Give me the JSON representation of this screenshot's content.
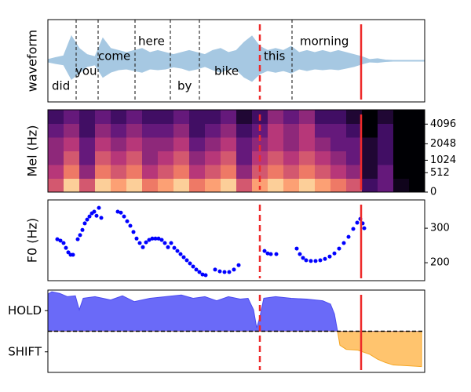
{
  "chart_data": [
    {
      "type": "waveform",
      "ylabel": "waveform",
      "color": "#a6c8e2",
      "xlim": [
        0,
        480
      ],
      "ylim": [
        -1,
        1
      ],
      "x": [
        0,
        10,
        20,
        30,
        40,
        50,
        60,
        70,
        80,
        90,
        100,
        110,
        120,
        130,
        140,
        150,
        160,
        170,
        180,
        190,
        200,
        210,
        220,
        230,
        240,
        250,
        260,
        270,
        280,
        290,
        300,
        310,
        320,
        330,
        340,
        350,
        360,
        370,
        380,
        390,
        400,
        410,
        420,
        430,
        440,
        450,
        460,
        470,
        480
      ],
      "series": [
        {
          "values": [
            0.03,
            0.08,
            0.12,
            0.6,
            0.3,
            0.15,
            0.1,
            0.55,
            0.3,
            0.25,
            0.2,
            0.25,
            0.3,
            0.2,
            0.25,
            0.2,
            0.15,
            0.2,
            0.25,
            0.2,
            0.15,
            0.25,
            0.3,
            0.2,
            0.25,
            0.45,
            0.6,
            0.35,
            0.25,
            0.3,
            0.25,
            0.35,
            0.2,
            0.25,
            0.2,
            0.25,
            0.2,
            0.25,
            0.2,
            0.15,
            0.1,
            0.03,
            0.05,
            0.02,
            0.01,
            0.01,
            0.01,
            0.01,
            0.01
          ]
        },
        {
          "values": [
            -0.03,
            -0.07,
            -0.1,
            -0.45,
            -0.3,
            -0.14,
            -0.1,
            -0.4,
            -0.28,
            -0.22,
            -0.2,
            -0.24,
            -0.28,
            -0.2,
            -0.22,
            -0.2,
            -0.15,
            -0.18,
            -0.24,
            -0.2,
            -0.14,
            -0.22,
            -0.28,
            -0.2,
            -0.22,
            -0.4,
            -0.5,
            -0.32,
            -0.24,
            -0.28,
            -0.24,
            -0.3,
            -0.2,
            -0.24,
            -0.2,
            -0.22,
            -0.2,
            -0.22,
            -0.18,
            -0.14,
            -0.08,
            -0.03,
            -0.04,
            -0.02,
            -0.01,
            -0.01,
            -0.01,
            -0.01,
            -0.01
          ]
        }
      ],
      "words": [
        {
          "text": "did",
          "x": 5
        },
        {
          "text": "you",
          "x": 35
        },
        {
          "text": "come",
          "x": 64
        },
        {
          "text": "here",
          "x": 115
        },
        {
          "text": "by",
          "x": 165
        },
        {
          "text": "bike",
          "x": 212
        },
        {
          "text": "this",
          "x": 275
        },
        {
          "text": "morning",
          "x": 321
        }
      ],
      "word_boundaries": [
        36,
        64,
        111,
        156,
        193,
        311
      ],
      "vlines": [
        {
          "x": 270,
          "color": "#ee2a2a",
          "style": "dashed"
        },
        {
          "x": 399,
          "color": "#ee2a2a",
          "style": "solid"
        }
      ]
    },
    {
      "type": "heatmap",
      "ylabel": "Mel (Hz)",
      "yscale": "mel",
      "yaxis": "right",
      "xlim": [
        0,
        480
      ],
      "ylim": [
        0,
        6500
      ],
      "yticks": [
        0,
        512,
        1024,
        2048,
        4096
      ],
      "colormap": [
        "#000004",
        "#51127c",
        "#b73779",
        "#fc8961",
        "#fcfdbf"
      ],
      "zlim": [
        0,
        1
      ],
      "z": [
        [
          0.6,
          0.9,
          0.6,
          0.9,
          0.8,
          0.9,
          0.7,
          0.8,
          0.9,
          0.7,
          0.8,
          0.9,
          0.6,
          0.8,
          0.9,
          0.8,
          0.9,
          0.8,
          0.7,
          0.6,
          0.2,
          0.3,
          0.05,
          0
        ],
        [
          0.5,
          0.7,
          0.4,
          0.7,
          0.6,
          0.7,
          0.5,
          0.6,
          0.7,
          0.5,
          0.6,
          0.7,
          0.4,
          0.6,
          0.7,
          0.6,
          0.7,
          0.6,
          0.5,
          0.4,
          0.1,
          0.3,
          0,
          0
        ],
        [
          0.4,
          0.6,
          0.3,
          0.6,
          0.5,
          0.6,
          0.4,
          0.5,
          0.6,
          0.4,
          0.5,
          0.6,
          0.3,
          0.5,
          0.6,
          0.5,
          0.6,
          0.5,
          0.4,
          0.3,
          0.1,
          0.2,
          0,
          0
        ],
        [
          0.4,
          0.5,
          0.3,
          0.5,
          0.4,
          0.5,
          0.4,
          0.4,
          0.5,
          0.3,
          0.4,
          0.5,
          0.3,
          0.4,
          0.5,
          0.4,
          0.5,
          0.4,
          0.3,
          0.3,
          0.1,
          0.2,
          0,
          0
        ],
        [
          0.3,
          0.4,
          0.2,
          0.4,
          0.3,
          0.4,
          0.3,
          0.3,
          0.4,
          0.2,
          0.3,
          0.4,
          0.2,
          0.3,
          0.5,
          0.4,
          0.5,
          0.3,
          0.3,
          0.2,
          0,
          0.2,
          0,
          0
        ],
        [
          0.2,
          0.3,
          0.2,
          0.3,
          0.2,
          0.3,
          0.2,
          0.2,
          0.3,
          0.2,
          0.2,
          0.3,
          0.1,
          0.2,
          0.4,
          0.3,
          0.4,
          0.2,
          0.2,
          0.1,
          0,
          0.1,
          0,
          0
        ]
      ],
      "vlines": [
        {
          "x": 270,
          "color": "#ee2a2a",
          "style": "dashed"
        },
        {
          "x": 399,
          "color": "#ee2a2a",
          "style": "solid"
        }
      ]
    },
    {
      "type": "scatter",
      "ylabel": "F0 (Hz)",
      "yaxis": "right",
      "color": "#0000ff",
      "xlim": [
        0,
        480
      ],
      "ylim": [
        148,
        382
      ],
      "yticks": [
        200,
        300
      ],
      "x": [
        12,
        16,
        20,
        23,
        26,
        29,
        32,
        38,
        41,
        44,
        47,
        50,
        53,
        56,
        59,
        62,
        65,
        68,
        89,
        93,
        97,
        101,
        105,
        109,
        113,
        117,
        121,
        125,
        129,
        133,
        137,
        141,
        145,
        149,
        153,
        157,
        161,
        165,
        169,
        173,
        177,
        181,
        185,
        189,
        193,
        197,
        201,
        213,
        219,
        225,
        231,
        237,
        243,
        276,
        280,
        284,
        291,
        317,
        321,
        325,
        329,
        335,
        341,
        347,
        353,
        359,
        365,
        371,
        377,
        383,
        389,
        394,
        398,
        401,
        403
      ],
      "values": [
        268,
        264,
        257,
        243,
        230,
        223,
        223,
        268,
        280,
        295,
        314,
        325,
        334,
        343,
        348,
        336,
        359,
        330,
        348,
        345,
        334,
        320,
        307,
        289,
        270,
        257,
        245,
        259,
        266,
        270,
        270,
        270,
        266,
        257,
        245,
        257,
        243,
        234,
        225,
        216,
        207,
        198,
        189,
        180,
        173,
        166,
        164,
        180,
        175,
        173,
        173,
        180,
        193,
        234,
        227,
        225,
        225,
        241,
        225,
        214,
        207,
        205,
        205,
        207,
        211,
        218,
        227,
        241,
        257,
        275,
        298,
        316,
        327,
        314,
        300
      ],
      "vlines": [
        {
          "x": 270,
          "color": "#ee2a2a",
          "style": "dashed"
        },
        {
          "x": 399,
          "color": "#ee2a2a",
          "style": "solid"
        }
      ]
    },
    {
      "type": "threshold_area",
      "yaxis": "left",
      "threshold": 0.5,
      "above_color": "#6a6af8",
      "below_color": "#ffc46e",
      "xlim": [
        0,
        480
      ],
      "ylim": [
        0,
        1
      ],
      "yticks": [
        {
          "value": 0.75,
          "label": "HOLD"
        },
        {
          "value": 0.25,
          "label": "SHIFT"
        }
      ],
      "x": [
        0,
        5,
        15,
        25,
        35,
        40,
        45,
        60,
        80,
        95,
        110,
        130,
        150,
        170,
        185,
        200,
        215,
        230,
        245,
        255,
        262,
        266,
        270,
        275,
        290,
        310,
        330,
        350,
        360,
        365,
        369,
        372,
        380,
        395,
        410,
        420,
        430,
        440,
        460,
        476
      ],
      "values": [
        0.95,
        0.98,
        0.96,
        0.92,
        0.93,
        0.76,
        0.9,
        0.92,
        0.88,
        0.93,
        0.86,
        0.9,
        0.92,
        0.94,
        0.9,
        0.92,
        0.87,
        0.92,
        0.89,
        0.9,
        0.76,
        0.54,
        0.67,
        0.9,
        0.92,
        0.9,
        0.89,
        0.87,
        0.83,
        0.71,
        0.5,
        0.33,
        0.28,
        0.27,
        0.22,
        0.16,
        0.12,
        0.09,
        0.08,
        0.07
      ],
      "vlines": [
        {
          "x": 270,
          "color": "#ee2a2a",
          "style": "dashed"
        },
        {
          "x": 399,
          "color": "#ee2a2a",
          "style": "solid"
        }
      ]
    }
  ]
}
